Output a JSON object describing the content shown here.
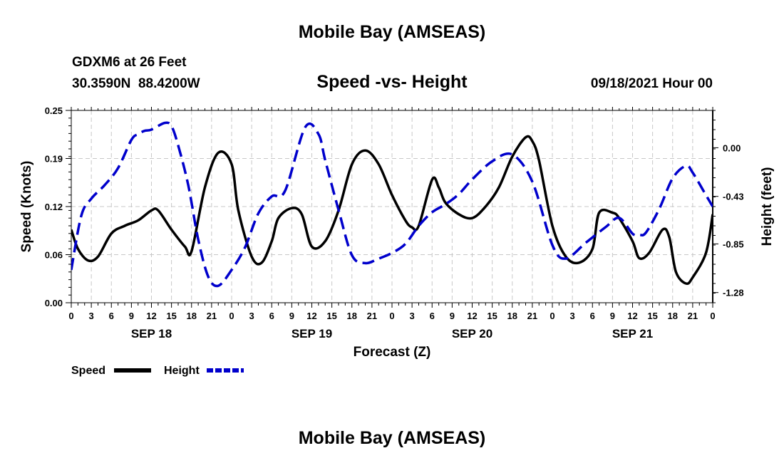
{
  "header": {
    "title_top": "Mobile Bay (AMSEAS)",
    "station_line": "GDXM6 at 26 Feet",
    "coords_line": "30.3590N  88.4200W",
    "timestamp": "09/18/2021 Hour 00",
    "title_bottom": "Mobile Bay (AMSEAS)"
  },
  "chart_data": {
    "type": "line",
    "title": "Speed -vs- Height",
    "xlabel": "Forecast (Z)",
    "ylabel": "Speed (Knots)",
    "y2label": "Height (feet)",
    "x_range_hours": [
      0,
      96
    ],
    "y_ticks": [
      "0.00",
      "0.06",
      "0.12",
      "0.19",
      "0.25"
    ],
    "y_tick_values": [
      0.0,
      0.0625,
      0.125,
      0.1875,
      0.25
    ],
    "ylim": [
      0,
      0.25
    ],
    "y2_ticks": [
      "0.00",
      "-0.43",
      "-0.85",
      "-1.28"
    ],
    "y2_tick_values": [
      0.0,
      -0.43,
      -0.85,
      -1.28
    ],
    "y2lim": [
      -1.37,
      0.33
    ],
    "x_tick_labels": [
      "0",
      "3",
      "6",
      "9",
      "12",
      "15",
      "18",
      "21",
      "0",
      "3",
      "6",
      "9",
      "12",
      "15",
      "18",
      "21",
      "0",
      "3",
      "6",
      "9",
      "12",
      "15",
      "18",
      "21",
      "0",
      "3",
      "6",
      "9",
      "12",
      "15",
      "18",
      "21",
      "0"
    ],
    "date_labels": [
      {
        "label": "SEP 18",
        "hour": 12
      },
      {
        "label": "SEP 19",
        "hour": 36
      },
      {
        "label": "SEP 20",
        "hour": 60
      },
      {
        "label": "SEP 21",
        "hour": 84
      }
    ],
    "grid": true,
    "legend": [
      {
        "name": "Speed",
        "color": "#000000",
        "style": "solid"
      },
      {
        "name": "Height",
        "color": "#0000cc",
        "style": "dashed"
      }
    ],
    "series": [
      {
        "name": "Speed",
        "axis": "left",
        "color": "#000000",
        "x": [
          0,
          1,
          2.5,
          4,
          6,
          8,
          10,
          12,
          13,
          15,
          17,
          18,
          20,
          22,
          24,
          25,
          27,
          28.5,
          30,
          31,
          33,
          34.5,
          36,
          38,
          40,
          42,
          44,
          46,
          48,
          50,
          51,
          52,
          54,
          55,
          56,
          58,
          60,
          62,
          64,
          66,
          68,
          69,
          70,
          72,
          74,
          76,
          78,
          79,
          81,
          82,
          84,
          85,
          86.5,
          88.5,
          89.5,
          90.5,
          92,
          93,
          95,
          96
        ],
        "y": [
          0.095,
          0.07,
          0.055,
          0.06,
          0.09,
          0.1,
          0.107,
          0.12,
          0.12,
          0.095,
          0.073,
          0.067,
          0.15,
          0.195,
          0.18,
          0.12,
          0.06,
          0.052,
          0.08,
          0.11,
          0.123,
          0.115,
          0.073,
          0.08,
          0.12,
          0.18,
          0.198,
          0.18,
          0.14,
          0.107,
          0.098,
          0.1,
          0.16,
          0.15,
          0.13,
          0.115,
          0.11,
          0.125,
          0.15,
          0.19,
          0.215,
          0.21,
          0.185,
          0.1,
          0.06,
          0.052,
          0.07,
          0.117,
          0.117,
          0.11,
          0.08,
          0.058,
          0.065,
          0.095,
          0.085,
          0.04,
          0.025,
          0.033,
          0.065,
          0.115
        ]
      },
      {
        "name": "Height",
        "axis": "right",
        "color": "#0000cc",
        "x": [
          0,
          1.5,
          3,
          5,
          7,
          9,
          10,
          11,
          12,
          14,
          15,
          16,
          17.5,
          19,
          20.5,
          22,
          24,
          26,
          28,
          30,
          32,
          35,
          37,
          38,
          40,
          42,
          44,
          46,
          48,
          50,
          52,
          54,
          56,
          58,
          60,
          63,
          66,
          69,
          72,
          74,
          77,
          80,
          82,
          84,
          85,
          86,
          88,
          90,
          92,
          93,
          95,
          96
        ],
        "y": [
          -1.08,
          -0.6,
          -0.45,
          -0.33,
          -0.18,
          0.07,
          0.12,
          0.15,
          0.16,
          0.22,
          0.19,
          0.02,
          -0.33,
          -0.81,
          -1.14,
          -1.22,
          -1.08,
          -0.88,
          -0.58,
          -0.43,
          -0.38,
          0.18,
          0.12,
          -0.11,
          -0.55,
          -0.95,
          -1.02,
          -0.98,
          -0.93,
          -0.85,
          -0.69,
          -0.57,
          -0.5,
          -0.41,
          -0.28,
          -0.12,
          -0.06,
          -0.3,
          -0.86,
          -0.98,
          -0.84,
          -0.7,
          -0.62,
          -0.76,
          -0.77,
          -0.75,
          -0.54,
          -0.27,
          -0.16,
          -0.22,
          -0.42,
          -0.52
        ]
      }
    ]
  }
}
